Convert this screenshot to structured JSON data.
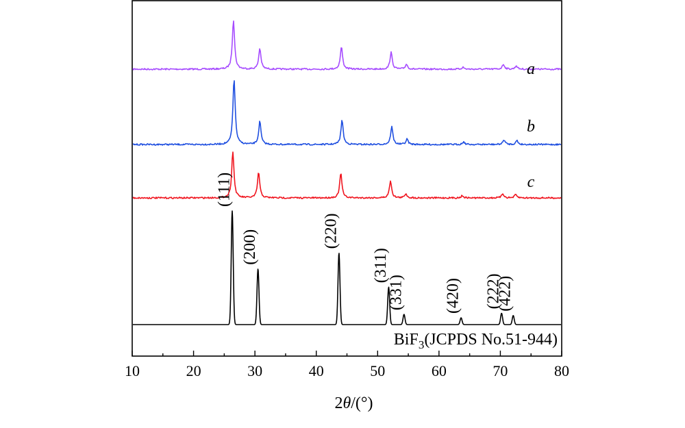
{
  "chart_data": {
    "type": "line",
    "title": "",
    "xlabel": "2θ/(°)",
    "xlabel_parts": {
      "prefix": "2",
      "symbol": "θ",
      "suffix": "/(°)"
    },
    "ylabel": "",
    "xlim": [
      10,
      80
    ],
    "xticks": [
      10,
      20,
      30,
      40,
      50,
      60,
      70,
      80
    ],
    "grid": false,
    "series": [
      {
        "name": "a",
        "color": "#a64bff",
        "baseline": 0.0,
        "peaks": [
          {
            "x": 26.5,
            "y": 1.0
          },
          {
            "x": 30.8,
            "y": 0.42
          },
          {
            "x": 44.1,
            "y": 0.45
          },
          {
            "x": 52.2,
            "y": 0.34
          },
          {
            "x": 54.7,
            "y": 0.1
          },
          {
            "x": 63.9,
            "y": 0.04
          },
          {
            "x": 70.5,
            "y": 0.1
          },
          {
            "x": 72.6,
            "y": 0.07
          }
        ]
      },
      {
        "name": "b",
        "color": "#1f4fe0",
        "baseline": 0.0,
        "peaks": [
          {
            "x": 26.6,
            "y": 1.0
          },
          {
            "x": 30.8,
            "y": 0.35
          },
          {
            "x": 44.2,
            "y": 0.37
          },
          {
            "x": 52.3,
            "y": 0.27
          },
          {
            "x": 54.8,
            "y": 0.08
          },
          {
            "x": 64.0,
            "y": 0.04
          },
          {
            "x": 70.6,
            "y": 0.07
          },
          {
            "x": 72.7,
            "y": 0.06
          }
        ]
      },
      {
        "name": "c",
        "color": "#f0141e",
        "baseline": 0.0,
        "peaks": [
          {
            "x": 26.4,
            "y": 1.0
          },
          {
            "x": 30.6,
            "y": 0.55
          },
          {
            "x": 44.0,
            "y": 0.53
          },
          {
            "x": 52.1,
            "y": 0.37
          },
          {
            "x": 54.6,
            "y": 0.09
          },
          {
            "x": 63.8,
            "y": 0.05
          },
          {
            "x": 70.4,
            "y": 0.09
          },
          {
            "x": 72.5,
            "y": 0.07
          }
        ]
      }
    ],
    "reference": {
      "label_prefix": "BiF",
      "label_subscript": "3",
      "label_suffix": "(JCPDS No.51-944)",
      "color": "#000000",
      "peaks": [
        {
          "x": 26.3,
          "y": 1.0,
          "hkl": "(111)"
        },
        {
          "x": 30.5,
          "y": 0.49,
          "hkl": "(200)"
        },
        {
          "x": 43.7,
          "y": 0.63,
          "hkl": "(220)"
        },
        {
          "x": 51.8,
          "y": 0.33,
          "hkl": "(311)"
        },
        {
          "x": 54.3,
          "y": 0.09,
          "hkl": "(331)"
        },
        {
          "x": 63.6,
          "y": 0.06,
          "hkl": "(420)"
        },
        {
          "x": 70.2,
          "y": 0.1,
          "hkl": "(222)"
        },
        {
          "x": 72.1,
          "y": 0.08,
          "hkl": "(422)"
        }
      ]
    }
  }
}
